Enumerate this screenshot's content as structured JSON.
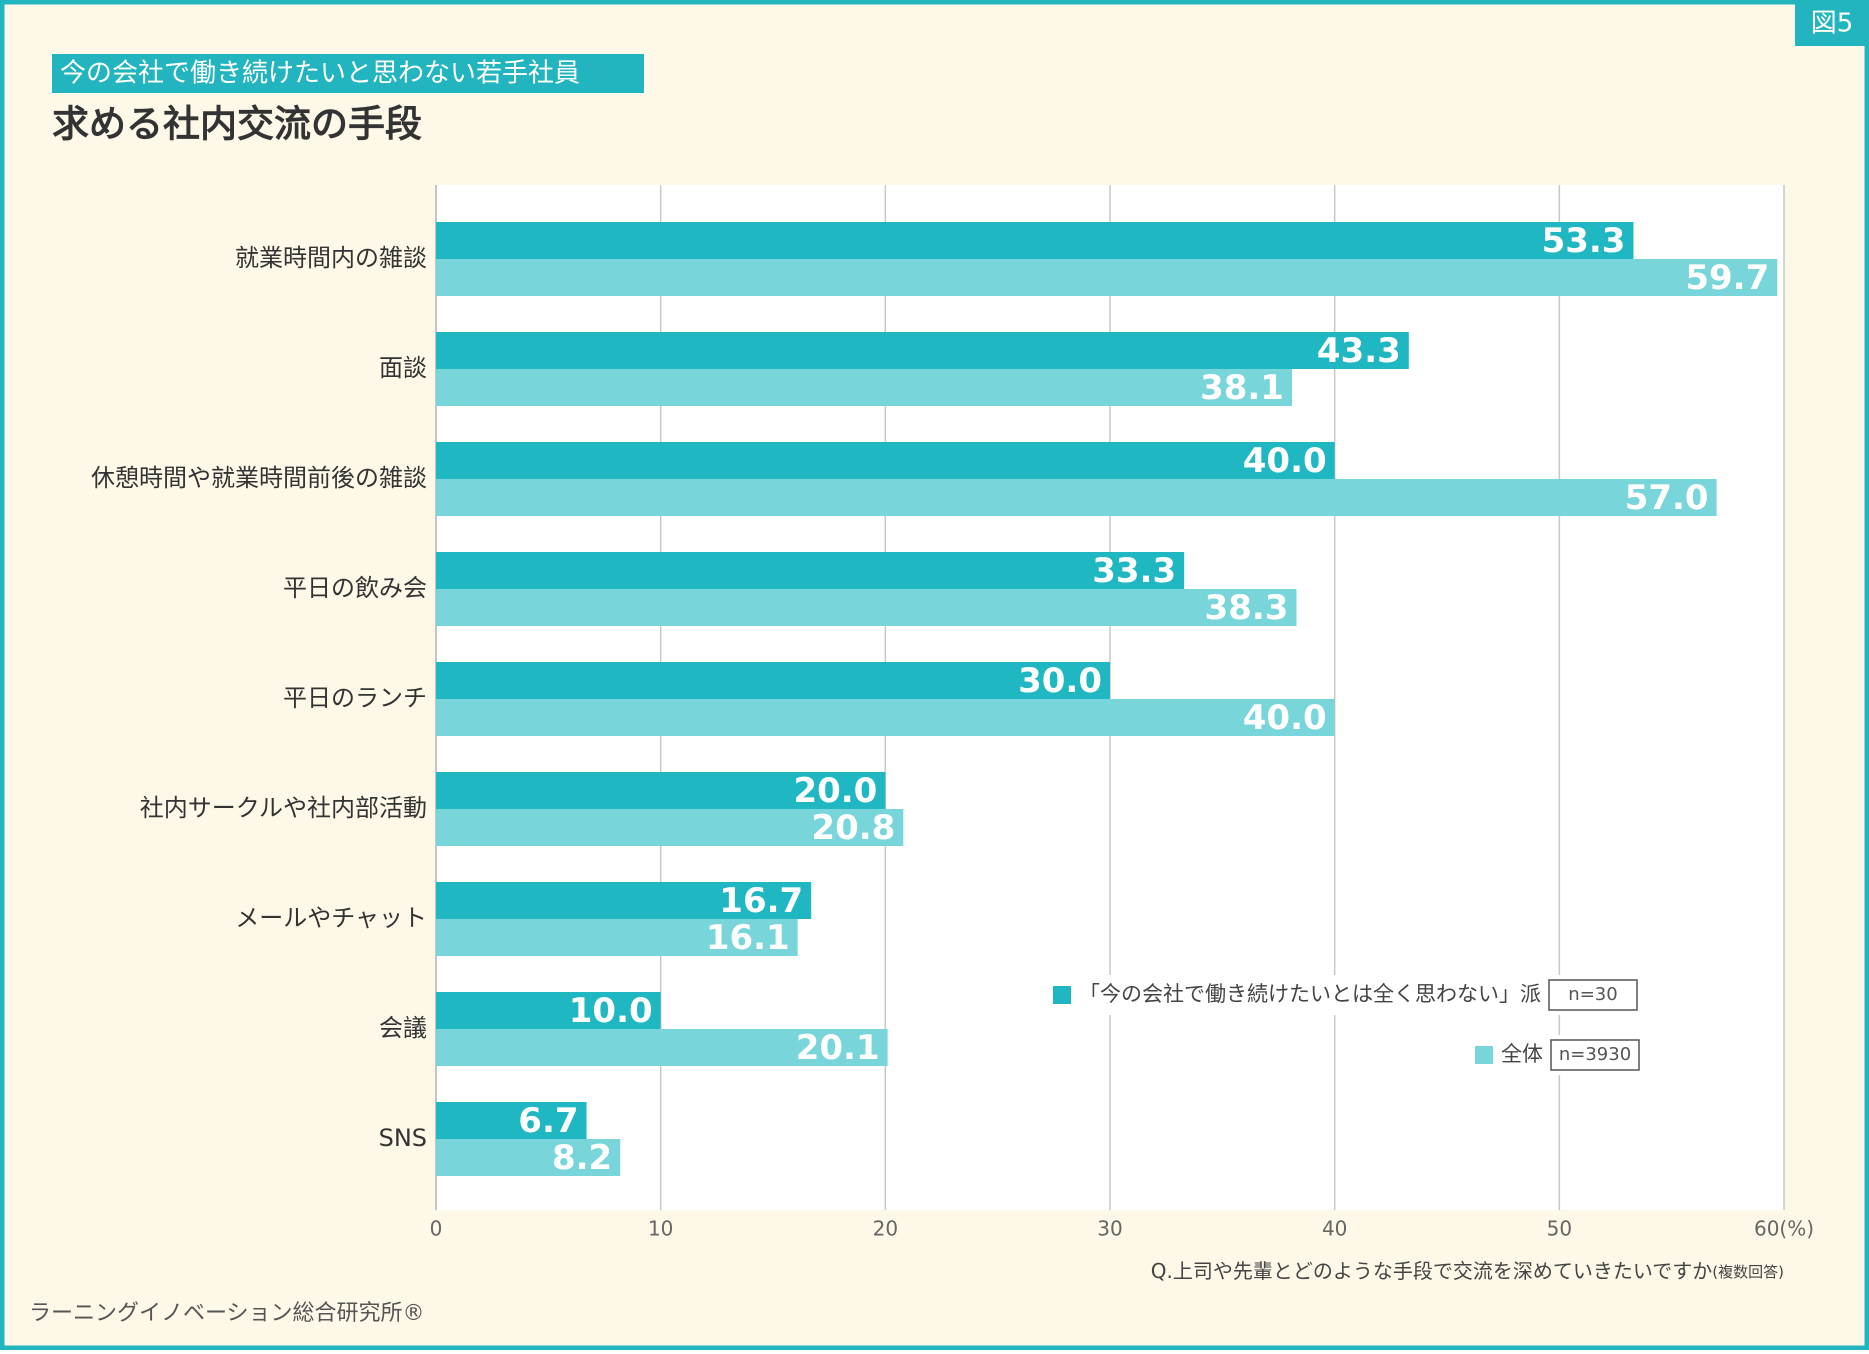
{
  "badge": "図5",
  "chart_data": {
    "type": "hbar",
    "subtitle": "今の会社で働き続けたいと思わない若手社員",
    "title": "求める社内交流の手段",
    "categories": [
      "就業時間内の雑談",
      "面談",
      "休憩時間や就業時間前後の雑談",
      "平日の飲み会",
      "平日のランチ",
      "社内サークルや社内部活動",
      "メールやチャット",
      "会議",
      "SNS"
    ],
    "series": [
      {
        "name": "「今の会社で働き続けたいとは全く思わない」派",
        "sample_size": "n=30",
        "color": "#1fb7c2",
        "values": [
          53.3,
          43.3,
          40.0,
          33.3,
          30.0,
          20.0,
          16.7,
          10.0,
          6.7
        ],
        "value_labels": [
          "53.3",
          "43.3",
          "40.0",
          "33.3",
          "30.0",
          "20.0",
          "16.7",
          "10.0",
          "6.7"
        ]
      },
      {
        "name": "全体",
        "sample_size": "n=3930",
        "color": "#78d6db",
        "values": [
          59.7,
          38.1,
          57.0,
          38.3,
          40.0,
          20.8,
          16.1,
          20.1,
          8.2
        ],
        "value_labels": [
          "59.7",
          "38.1",
          "57.0",
          "38.3",
          "40.0",
          "20.8",
          "16.1",
          "20.1",
          "8.2"
        ]
      }
    ],
    "xlim": [
      0,
      60
    ],
    "xticks": [
      0,
      10,
      20,
      30,
      40,
      50,
      {
        "value": 60,
        "label": "60(%)"
      }
    ],
    "grid": true,
    "question": "Q.上司や先輩とどのような手段で交流を深めていきたいですか",
    "question_note": "(複数回答)",
    "source": "ラーニングイノベーション総合研究所®"
  }
}
